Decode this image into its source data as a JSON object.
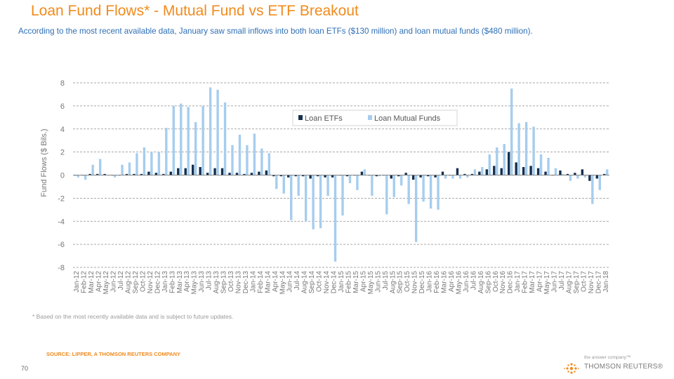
{
  "page": {
    "title": "Loan Fund Flows* - Mutual Fund vs ETF Breakout",
    "subtitle": "According to the most recent available data, January saw small inflows into both loan ETFs ($130 million) and loan mutual funds ($480 million).",
    "footnote": "* Based on the most recently available data and is subject to future updates.",
    "source": "SOURCE: LIPPER, A THOMSON REUTERS COMPANY",
    "page_number": "70",
    "logo": {
      "tagline": "the answer company™",
      "name": "THOMSON REUTERS®",
      "icon": "thomson-reuters-logo-icon"
    }
  },
  "colors": {
    "etf": "#14304f",
    "mutual": "#a6cdee",
    "grid": "#8c8c8c",
    "axis_text": "#777777"
  },
  "chart_data": {
    "type": "bar",
    "title": "",
    "xlabel": "",
    "ylabel": "Fund Flows ($ Bils.)",
    "ylim": [
      -8,
      8
    ],
    "yticks": [
      8,
      6,
      4,
      2,
      0,
      -2,
      -4,
      -6,
      -8
    ],
    "ytick_labels": [
      "8",
      "6",
      "4",
      "2",
      "0",
      "-2",
      "-4",
      "-6",
      "-8"
    ],
    "grid": true,
    "legend_position": "top-right",
    "categories": [
      "Jan-12",
      "Feb-12",
      "Mar-12",
      "Apr-12",
      "May-12",
      "Jun-12",
      "Jul-12",
      "Aug-12",
      "Sep-12",
      "Oct-12",
      "Nov-12",
      "Dec-12",
      "Jan-13",
      "Feb-13",
      "Mar-13",
      "Apr-13",
      "May-13",
      "Jun-13",
      "Jul-13",
      "Aug-13",
      "Sep-13",
      "Oct-13",
      "Nov-13",
      "Dec-13",
      "Jan-14",
      "Feb-14",
      "Mar-14",
      "Apr-14",
      "May-14",
      "Jun-14",
      "Jul-14",
      "Aug-14",
      "Sep-14",
      "Oct-14",
      "Nov-14",
      "Dec-14",
      "Jan-15",
      "Feb-15",
      "Mar-15",
      "Apr-15",
      "May-15",
      "Jun-15",
      "Jul-15",
      "Aug-15",
      "Sep-15",
      "Oct-15",
      "Nov-15",
      "Dec-15",
      "Jan-16",
      "Feb-16",
      "Mar-16",
      "Apr-16",
      "May-16",
      "Jun-16",
      "Jul-16",
      "Aug-16",
      "Sep-16",
      "Oct-16",
      "Nov-16",
      "Dec-16",
      "Jan-17",
      "Feb-17",
      "Mar-17",
      "Apr-17",
      "May-17",
      "Jun-17",
      "Jul-17",
      "Aug-17",
      "Sep-17",
      "Oct-17",
      "Nov-17",
      "Dec-17",
      "Jan-18"
    ],
    "series": [
      {
        "name": "Loan ETFs",
        "values": [
          0.0,
          0.0,
          0.1,
          0.1,
          0.1,
          0.0,
          0.0,
          0.1,
          0.1,
          0.1,
          0.3,
          0.2,
          0.1,
          0.3,
          0.6,
          0.6,
          0.9,
          0.7,
          0.2,
          0.6,
          0.6,
          0.2,
          0.2,
          0.1,
          0.2,
          0.3,
          0.4,
          -0.1,
          -0.1,
          -0.2,
          -0.1,
          -0.1,
          -0.3,
          -0.1,
          -0.2,
          -0.2,
          0.0,
          -0.1,
          0.0,
          0.3,
          0.0,
          -0.1,
          0.0,
          -0.3,
          -0.1,
          0.2,
          -0.4,
          -0.2,
          -0.1,
          -0.2,
          0.3,
          0.0,
          0.6,
          0.1,
          0.1,
          0.3,
          0.5,
          0.8,
          0.6,
          2.0,
          1.1,
          0.7,
          0.8,
          0.6,
          0.3,
          0.0,
          0.4,
          0.1,
          0.2,
          0.5,
          -0.5,
          -0.3,
          0.1
        ]
      },
      {
        "name": "Loan Mutual Funds",
        "values": [
          -0.2,
          -0.4,
          0.9,
          1.4,
          0.0,
          -0.2,
          0.9,
          1.1,
          1.9,
          2.4,
          2.0,
          2.0,
          4.1,
          6.0,
          6.2,
          5.9,
          4.6,
          6.0,
          7.6,
          7.4,
          6.3,
          2.6,
          3.5,
          2.6,
          3.6,
          2.3,
          1.9,
          -1.2,
          -1.6,
          -3.9,
          -1.8,
          -4.0,
          -4.7,
          -4.6,
          -1.8,
          -7.5,
          -3.5,
          -0.7,
          -1.3,
          0.5,
          -1.8,
          -0.1,
          -3.4,
          -1.9,
          -0.9,
          -2.5,
          -5.8,
          -2.3,
          -2.9,
          -3.0,
          -0.3,
          -0.3,
          -0.3,
          -0.2,
          0.5,
          0.7,
          1.8,
          2.4,
          2.7,
          7.5,
          4.5,
          4.6,
          4.2,
          1.8,
          1.5,
          0.6,
          0.1,
          -0.5,
          -0.3,
          -0.2,
          -2.5,
          -1.3,
          0.5
        ]
      }
    ],
    "legend": [
      "Loan ETFs",
      "Loan Mutual Funds"
    ]
  }
}
